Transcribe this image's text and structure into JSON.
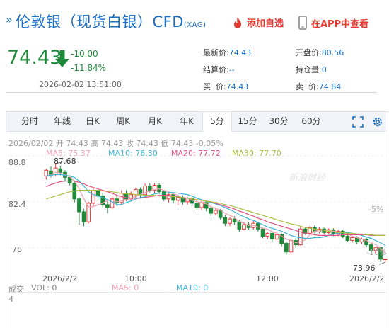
{
  "header": {
    "title": "伦敦银（现货白银）CFD",
    "code": "(XAG)",
    "add_fav_label": "添加自选",
    "app_view_label": "在APP中查看"
  },
  "quote": {
    "price": "74.43",
    "change": "-10.00",
    "change_pct": "-11.84%",
    "datetime": "2026-02-02 13:51:00",
    "color_down": "#1e8a3a",
    "fields": [
      {
        "label": "最新价:",
        "value": "74.43"
      },
      {
        "label": "开盘价:",
        "value": "80.56"
      },
      {
        "label": "结算价:",
        "value": "--"
      },
      {
        "label": "持仓量:",
        "value": "0"
      },
      {
        "label": "买  价:",
        "value": "74.43"
      },
      {
        "label": "卖  价:",
        "value": "74.84"
      }
    ]
  },
  "tabs": [
    {
      "label": "分时",
      "active": false
    },
    {
      "label": "年线",
      "active": false
    },
    {
      "label": "日K",
      "active": false
    },
    {
      "label": "周K",
      "active": false
    },
    {
      "label": "月K",
      "active": false
    },
    {
      "label": "年K",
      "active": false
    },
    {
      "label": "5分",
      "active": true
    },
    {
      "label": "15分",
      "active": false
    },
    {
      "label": "30分",
      "active": false
    },
    {
      "label": "60分",
      "active": false
    }
  ],
  "tools": [
    "fullscreen-icon",
    "settings-icon"
  ],
  "chart_info": "2026/02/02 开 74.43 高 74.43 收 74.43 低 74.43 -0.05%",
  "watermark": "新浪财经",
  "chart_data": {
    "type": "candlestick",
    "interval": "5分",
    "y_ticks": [
      "88.8",
      "82.4",
      "76"
    ],
    "y_range": [
      73.2,
      89.0
    ],
    "pct_ticks": [
      "-5%",
      "-10%"
    ],
    "x_ticks": [
      "2026/2/2",
      "10:00",
      "12:00",
      "2026/2/2"
    ],
    "max_label": "87.68",
    "min_label": "73.96",
    "ma_labels": [
      {
        "name": "MA5",
        "value": "75.37",
        "color": "#f0a0b0"
      },
      {
        "name": "MA10",
        "value": "76.30",
        "color": "#3cb4d8"
      },
      {
        "name": "MA20",
        "value": "77.72",
        "color": "#e05080"
      },
      {
        "name": "MA30",
        "value": "77.70",
        "color": "#a8c040"
      }
    ],
    "colors": {
      "up": "#e23a3a",
      "down": "#1e8a3a"
    },
    "candles": [
      [
        86.0,
        86.8,
        87.0,
        85.5
      ],
      [
        86.7,
        86.2,
        87.3,
        85.8
      ],
      [
        86.2,
        87.1,
        87.7,
        86.0
      ],
      [
        87.0,
        86.5,
        87.4,
        86.1
      ],
      [
        86.5,
        85.8,
        86.8,
        85.2
      ],
      [
        85.8,
        85.0,
        86.1,
        84.7
      ],
      [
        85.0,
        82.8,
        85.2,
        82.3
      ],
      [
        82.8,
        81.0,
        83.0,
        79.2
      ],
      [
        81.0,
        79.6,
        81.4,
        79.0
      ],
      [
        79.6,
        82.2,
        82.4,
        79.4
      ],
      [
        82.2,
        84.0,
        84.3,
        81.8
      ],
      [
        84.0,
        83.2,
        84.4,
        82.5
      ],
      [
        83.2,
        82.0,
        83.6,
        81.6
      ],
      [
        82.0,
        81.6,
        82.5,
        80.8
      ],
      [
        81.6,
        82.8,
        83.2,
        81.3
      ],
      [
        82.8,
        82.3,
        83.4,
        81.8
      ],
      [
        82.3,
        83.6,
        84.0,
        82.0
      ],
      [
        83.6,
        82.8,
        84.0,
        82.5
      ],
      [
        82.8,
        83.4,
        83.8,
        82.5
      ],
      [
        83.4,
        84.1,
        84.4,
        83.0
      ],
      [
        84.1,
        83.4,
        84.4,
        83.0
      ],
      [
        83.4,
        84.6,
        84.9,
        83.2
      ],
      [
        84.6,
        84.0,
        85.0,
        83.7
      ],
      [
        84.0,
        84.7,
        85.0,
        83.6
      ],
      [
        84.7,
        83.8,
        85.0,
        83.5
      ],
      [
        83.8,
        82.8,
        84.0,
        82.5
      ],
      [
        82.8,
        83.4,
        83.6,
        82.3
      ],
      [
        83.4,
        82.6,
        83.7,
        82.2
      ],
      [
        82.6,
        83.0,
        83.2,
        81.9
      ],
      [
        83.0,
        82.4,
        83.3,
        82.0
      ],
      [
        82.4,
        82.9,
        83.1,
        82.0
      ],
      [
        82.9,
        82.2,
        83.2,
        81.8
      ],
      [
        82.2,
        81.6,
        82.6,
        81.2
      ],
      [
        81.6,
        82.3,
        82.6,
        81.2
      ],
      [
        82.3,
        81.5,
        82.5,
        81.1
      ],
      [
        81.5,
        80.8,
        81.8,
        80.4
      ],
      [
        80.8,
        81.2,
        81.5,
        80.5
      ],
      [
        81.2,
        80.2,
        81.4,
        79.9
      ],
      [
        80.2,
        79.4,
        80.6,
        79.0
      ],
      [
        79.4,
        80.0,
        80.3,
        79.0
      ],
      [
        80.0,
        79.6,
        80.4,
        79.2
      ],
      [
        79.6,
        78.6,
        79.9,
        78.2
      ],
      [
        78.6,
        79.2,
        79.6,
        78.4
      ],
      [
        79.2,
        78.8,
        79.6,
        78.5
      ],
      [
        78.8,
        79.4,
        79.8,
        78.5
      ],
      [
        79.4,
        78.6,
        79.6,
        78.2
      ],
      [
        78.6,
        77.6,
        78.8,
        77.3
      ],
      [
        77.6,
        78.0,
        78.2,
        77.2
      ],
      [
        78.0,
        77.2,
        78.3,
        76.8
      ],
      [
        77.2,
        77.8,
        78.1,
        77.0
      ],
      [
        77.8,
        76.6,
        78.0,
        76.2
      ],
      [
        76.6,
        75.4,
        76.8,
        75.0
      ],
      [
        75.4,
        77.0,
        77.2,
        75.2
      ],
      [
        77.0,
        76.4,
        77.3,
        76.0
      ],
      [
        76.4,
        78.6,
        78.9,
        76.3
      ],
      [
        78.6,
        78.0,
        78.9,
        77.8
      ],
      [
        78.0,
        78.8,
        79.0,
        77.8
      ],
      [
        78.8,
        78.2,
        79.1,
        78.0
      ],
      [
        78.2,
        78.6,
        78.9,
        78.0
      ],
      [
        78.6,
        78.1,
        78.8,
        77.8
      ],
      [
        78.1,
        78.5,
        78.7,
        77.9
      ],
      [
        78.5,
        77.9,
        78.7,
        77.6
      ],
      [
        77.9,
        78.3,
        78.5,
        77.6
      ],
      [
        78.3,
        77.6,
        78.5,
        77.3
      ],
      [
        77.6,
        77.0,
        77.9,
        76.8
      ],
      [
        77.0,
        77.4,
        77.6,
        76.7
      ],
      [
        77.4,
        76.8,
        77.6,
        76.5
      ],
      [
        76.8,
        77.2,
        77.4,
        76.5
      ],
      [
        77.2,
        76.4,
        77.4,
        76.1
      ],
      [
        76.4,
        75.6,
        76.7,
        75.3
      ],
      [
        75.6,
        76.0,
        76.2,
        75.2
      ],
      [
        76.0,
        74.4,
        76.1,
        74.0
      ],
      [
        74.4,
        74.43,
        74.5,
        73.96
      ]
    ],
    "lines": {
      "MA5": [
        85.9,
        86.2,
        86.5,
        86.4,
        86.2,
        85.9,
        85.3,
        84.2,
        82.8,
        81.7,
        81.7,
        82.0,
        82.2,
        82.6,
        82.7,
        82.4,
        82.5,
        82.7,
        82.8,
        83.2,
        83.4,
        83.7,
        83.9,
        84.1,
        84.2,
        84.0,
        83.8,
        83.5,
        83.3,
        82.9,
        82.9,
        82.6,
        82.4,
        82.3,
        82.1,
        81.7,
        81.5,
        81.2,
        80.8,
        80.5,
        80.2,
        79.6,
        79.4,
        79.1,
        79.1,
        78.9,
        78.7,
        78.6,
        78.2,
        78.0,
        77.6,
        77.2,
        77.0,
        76.7,
        76.8,
        77.1,
        77.8,
        78.3,
        78.4,
        78.5,
        78.4,
        78.3,
        78.2,
        78.1,
        77.9,
        77.6,
        77.4,
        77.2,
        77.0,
        76.7,
        76.4,
        75.9,
        75.37
      ],
      "MA10": [
        86.0,
        86.1,
        86.2,
        86.2,
        86.1,
        86.0,
        85.8,
        85.3,
        84.6,
        83.8,
        83.4,
        83.2,
        83.0,
        82.7,
        82.4,
        82.0,
        82.0,
        82.3,
        82.5,
        82.8,
        83.0,
        83.1,
        83.3,
        83.5,
        83.6,
        83.6,
        83.7,
        83.7,
        83.6,
        83.5,
        83.4,
        83.2,
        82.9,
        82.7,
        82.5,
        82.3,
        82.1,
        81.9,
        81.6,
        81.3,
        81.0,
        80.6,
        80.3,
        80.0,
        79.8,
        79.5,
        79.2,
        78.9,
        78.7,
        78.5,
        78.3,
        78.0,
        77.7,
        77.5,
        77.4,
        77.3,
        77.3,
        77.4,
        77.4,
        77.5,
        77.7,
        77.9,
        78.0,
        78.1,
        78.1,
        78.0,
        77.9,
        77.7,
        77.5,
        77.3,
        77.0,
        76.7,
        76.3
      ],
      "MA20": [
        84.5,
        84.8,
        85.0,
        85.2,
        85.3,
        85.3,
        85.3,
        85.1,
        84.9,
        84.6,
        84.4,
        84.2,
        84.0,
        83.8,
        83.6,
        83.3,
        83.1,
        83.0,
        82.9,
        82.9,
        82.9,
        83.0,
        83.1,
        83.2,
        83.3,
        83.3,
        83.3,
        83.2,
        83.1,
        83.0,
        82.9,
        82.8,
        82.7,
        82.6,
        82.5,
        82.4,
        82.2,
        82.0,
        81.8,
        81.6,
        81.4,
        81.1,
        80.9,
        80.6,
        80.4,
        80.1,
        79.9,
        79.6,
        79.4,
        79.2,
        79.0,
        78.8,
        78.6,
        78.4,
        78.2,
        78.0,
        77.9,
        77.8,
        77.7,
        77.7,
        77.7,
        77.7,
        77.7,
        77.8,
        77.8,
        77.8,
        77.8,
        77.8,
        77.8,
        77.7,
        77.7,
        77.7,
        77.72
      ],
      "MA30": [
        82.8,
        83.0,
        83.2,
        83.4,
        83.6,
        83.8,
        83.9,
        84.0,
        84.0,
        84.0,
        84.0,
        84.0,
        83.9,
        83.9,
        83.8,
        83.7,
        83.6,
        83.5,
        83.5,
        83.4,
        83.4,
        83.3,
        83.3,
        83.3,
        83.2,
        83.2,
        83.2,
        83.1,
        83.1,
        83.0,
        82.9,
        82.8,
        82.7,
        82.6,
        82.5,
        82.4,
        82.3,
        82.2,
        82.0,
        81.9,
        81.7,
        81.5,
        81.3,
        81.1,
        80.9,
        80.7,
        80.5,
        80.3,
        80.1,
        79.9,
        79.7,
        79.5,
        79.3,
        79.2,
        79.0,
        78.8,
        78.7,
        78.6,
        78.5,
        78.4,
        78.3,
        78.2,
        78.1,
        78.1,
        78.0,
        78.0,
        77.9,
        77.9,
        77.8,
        77.8,
        77.7,
        77.7,
        77.7
      ]
    },
    "volume_labels": [
      {
        "label": "成交",
        "value": "4",
        "color": "#888888"
      },
      {
        "label": "VOL:",
        "value": "0",
        "color": "#888888"
      },
      {
        "label": "MA5:",
        "value": "0",
        "color": "#f0a0b0"
      },
      {
        "label": "MA10:",
        "value": "0",
        "color": "#3cb4d8"
      }
    ]
  }
}
